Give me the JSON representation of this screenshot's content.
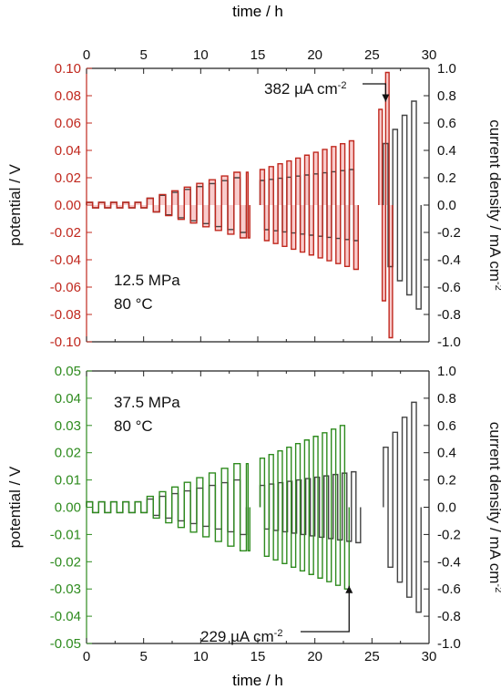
{
  "figure": {
    "top_axis_label": "time / h",
    "bottom_axis_label": "time / h"
  },
  "chart_data": [
    {
      "type": "line",
      "xlabel": "time / h",
      "x_ticks": [
        "0",
        "5",
        "10",
        "15",
        "20",
        "25",
        "30"
      ],
      "xlim": [
        0,
        30
      ],
      "ylabel_left": "potential / V",
      "ylim_left": [
        -0.1,
        0.1
      ],
      "y_ticks_left": [
        "0.10",
        "0.08",
        "0.06",
        "0.04",
        "0.02",
        "0.00",
        "-0.02",
        "-0.04",
        "-0.06",
        "-0.08",
        "-0.10"
      ],
      "ylabel_right": "current density / mA cm-2",
      "ylim_right": [
        -1.0,
        1.0
      ],
      "y_ticks_right": [
        "1.0",
        "0.8",
        "0.6",
        "0.4",
        "0.2",
        "0.0",
        "-0.2",
        "-0.4",
        "-0.6",
        "-0.8",
        "-1.0"
      ],
      "potential_color": "#c0281e",
      "current_color": "#444444",
      "fill_color": "#f4a3a3",
      "annotations": [
        {
          "text": "12.5 MPa"
        },
        {
          "text": "80 °C"
        },
        {
          "text": "382 µA cm",
          "sup": "-2",
          "arrow_to": [
            26.2,
            0.073
          ]
        }
      ],
      "series": [
        {
          "role": "potential",
          "blocks": [
            {
              "t0": 0.0,
              "t1": 5.3,
              "n": 5,
              "amp": 0.002
            },
            {
              "t0": 5.3,
              "t1": 14.0,
              "n": 8,
              "amp_start": 0.005,
              "amp_end": 0.024
            },
            {
              "t0": 14.0,
              "t1": 14.3,
              "n": 1,
              "amp": 0.024
            },
            {
              "t0": 15.2,
              "t1": 23.8,
              "n": 11,
              "amp_start": 0.026,
              "amp_end": 0.047
            },
            {
              "t0": 25.6,
              "t1": 26.8,
              "n": 2,
              "amp_start": 0.07,
              "amp_end": 0.097
            }
          ]
        },
        {
          "role": "current",
          "blocks": [
            {
              "t0": 0.0,
              "t1": 5.3,
              "n": 5,
              "amp": 0.02
            },
            {
              "t0": 5.3,
              "t1": 14.0,
              "n": 8,
              "amp_start": 0.05,
              "amp_end": 0.2
            },
            {
              "t0": 15.2,
              "t1": 23.8,
              "n": 11,
              "amp_start": 0.18,
              "amp_end": 0.26
            },
            {
              "t0": 26.0,
              "t1": 29.3,
              "n": 4,
              "amp_start": 0.45,
              "amp_end": 0.76
            }
          ]
        }
      ]
    },
    {
      "type": "line",
      "xlabel": "time / h",
      "x_ticks": [
        "0",
        "5",
        "10",
        "15",
        "20",
        "25",
        "30"
      ],
      "xlim": [
        0,
        30
      ],
      "ylabel_left": "potential / V",
      "ylim_left": [
        -0.05,
        0.05
      ],
      "y_ticks_left": [
        "0.05",
        "0.04",
        "0.03",
        "0.02",
        "0.01",
        "0.00",
        "-0.01",
        "-0.02",
        "-0.03",
        "-0.04",
        "-0.05"
      ],
      "ylabel_right": "current density / mA cm-2",
      "ylim_right": [
        -1.0,
        1.0
      ],
      "y_ticks_right": [
        "1.0",
        "0.8",
        "0.6",
        "0.4",
        "0.2",
        "0.0",
        "-0.2",
        "-0.4",
        "-0.6",
        "-0.8",
        "-1.0"
      ],
      "potential_color": "#2e8b1e",
      "current_color": "#444444",
      "annotations": [
        {
          "text": "37.5 MPa"
        },
        {
          "text": "80 °C"
        },
        {
          "text": "229 µA cm",
          "sup": "-2",
          "arrow_to": [
            23.0,
            -0.0275
          ]
        }
      ],
      "series": [
        {
          "role": "potential",
          "blocks": [
            {
              "t0": 0.0,
              "t1": 5.3,
              "n": 5,
              "amp": 0.002
            },
            {
              "t0": 5.3,
              "t1": 14.0,
              "n": 8,
              "amp_start": 0.004,
              "amp_end": 0.016
            },
            {
              "t0": 14.0,
              "t1": 14.3,
              "n": 1,
              "amp": 0.016
            },
            {
              "t0": 15.2,
              "t1": 23.0,
              "n": 10,
              "amp_start": 0.018,
              "amp_end": 0.03
            }
          ]
        },
        {
          "role": "current",
          "blocks": [
            {
              "t0": 0.0,
              "t1": 5.3,
              "n": 5,
              "amp": 0.04
            },
            {
              "t0": 5.3,
              "t1": 14.0,
              "n": 8,
              "amp_start": 0.06,
              "amp_end": 0.2
            },
            {
              "t0": 15.2,
              "t1": 24.0,
              "n": 11,
              "amp_start": 0.16,
              "amp_end": 0.26
            },
            {
              "t0": 26.0,
              "t1": 29.3,
              "n": 4,
              "amp_start": 0.44,
              "amp_end": 0.77
            }
          ]
        }
      ]
    }
  ]
}
